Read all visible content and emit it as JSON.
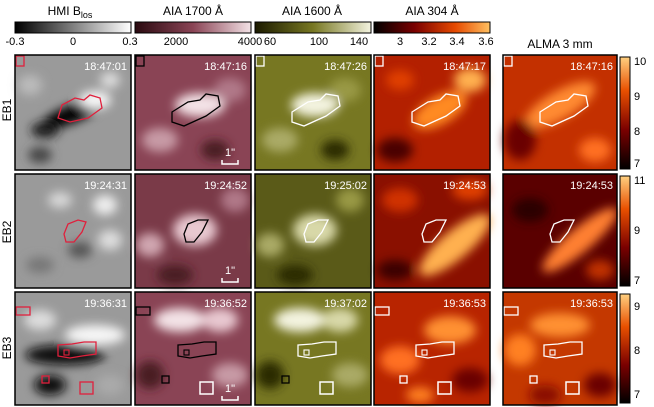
{
  "columns": [
    {
      "title": "HMI B",
      "subscript": "los",
      "ticks": [
        "-0.3",
        "0",
        "0.3"
      ],
      "ramp": [
        "#000000",
        "#ffffff"
      ]
    },
    {
      "title": "AIA 1700 Å",
      "ticks": [
        "2000",
        "4000"
      ],
      "ramp": [
        "#2a0a10",
        "#8a4455",
        "#f3e2e6"
      ]
    },
    {
      "title": "AIA 1600 Å",
      "ticks": [
        "60",
        "100",
        "140"
      ],
      "ramp": [
        "#1b1a00",
        "#777722",
        "#f3f3df"
      ]
    },
    {
      "title": "AIA 304 Å",
      "ticks": [
        "3",
        "3.2",
        "3.4",
        "3.6"
      ],
      "ramp": [
        "#000000",
        "#7a0000",
        "#e64a00",
        "#ffc060"
      ]
    },
    {
      "title": "ALMA 3 mm",
      "ramp": [
        "#000000",
        "#7a0000",
        "#e85000",
        "#ffd080"
      ]
    }
  ],
  "rows": [
    {
      "label": "EB1",
      "times": [
        "18:47:01",
        "18:47:16",
        "18:47:26",
        "18:47:17",
        "18:47:16"
      ],
      "alma_ticks": [
        "10",
        "9",
        "8",
        "7"
      ]
    },
    {
      "label": "EB2",
      "times": [
        "19:24:31",
        "19:24:52",
        "19:25:02",
        "19:24:53",
        "19:24:53"
      ],
      "alma_ticks": [
        "11",
        "9",
        "7"
      ]
    },
    {
      "label": "EB3",
      "times": [
        "19:36:31",
        "19:36:52",
        "19:37:02",
        "19:36:53",
        "19:36:53"
      ],
      "alma_ticks": [
        "9",
        "8",
        "7"
      ]
    }
  ],
  "scale_bar_label": "1\"",
  "colors": {
    "contour_hmi": "#e0203c",
    "contour_other": "#ffffff",
    "contour_1700": "#000000"
  }
}
